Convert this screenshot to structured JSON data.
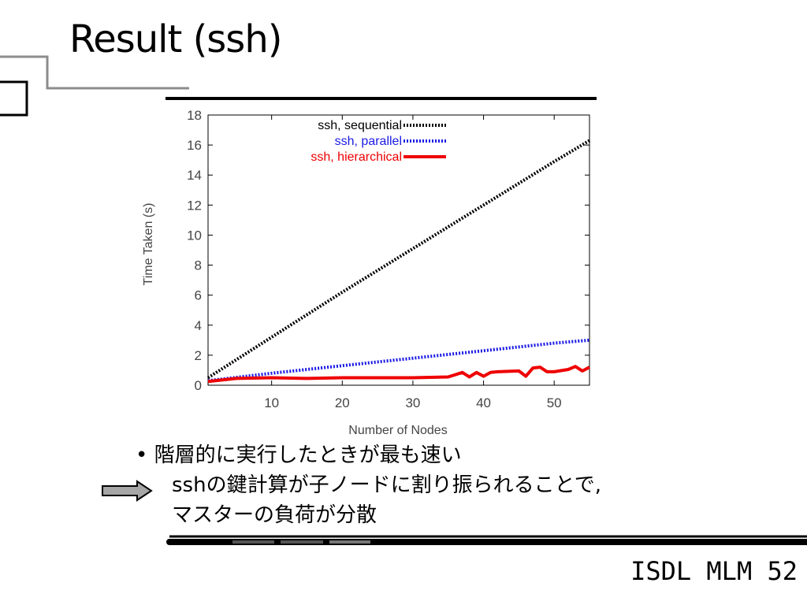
{
  "slide": {
    "title": "Result (ssh)",
    "bullet": "• 階層的に実行したときが最も速い",
    "arrow_text_line1": "sshの鍵計算が子ノードに割り振られることで,",
    "arrow_text_line2": "マスターの負荷が分散",
    "footer": "ISDL MLM 52"
  },
  "colors": {
    "sequential": "#000000",
    "parallel": "#1a1ae6",
    "hierarchical": "#ee0000",
    "arrow_fill": "#a6a6a6"
  },
  "chart_data": {
    "type": "line",
    "xlabel": "Number of Nodes",
    "ylabel": "Time Taken (s)",
    "xlim": [
      1,
      55
    ],
    "ylim": [
      0,
      18
    ],
    "xticks": [
      10,
      20,
      30,
      40,
      50
    ],
    "yticks": [
      0,
      2,
      4,
      6,
      8,
      10,
      12,
      14,
      16,
      18
    ],
    "grid": false,
    "legend": "top-left",
    "series": [
      {
        "name": "ssh, sequential",
        "style": "dotted",
        "x": [
          1,
          10,
          20,
          30,
          40,
          50,
          55
        ],
        "y": [
          0.5,
          3.2,
          6.2,
          9.1,
          12.0,
          14.9,
          16.3
        ]
      },
      {
        "name": "ssh, parallel",
        "style": "dotted",
        "x": [
          1,
          10,
          20,
          30,
          40,
          50,
          55
        ],
        "y": [
          0.3,
          0.8,
          1.3,
          1.8,
          2.3,
          2.8,
          3.0
        ]
      },
      {
        "name": "ssh, hierarchical",
        "style": "solid",
        "x": [
          1,
          5,
          10,
          15,
          20,
          25,
          30,
          35,
          37,
          38,
          39,
          40,
          41,
          42,
          45,
          46,
          47,
          48,
          49,
          50,
          52,
          53,
          54,
          55
        ],
        "y": [
          0.25,
          0.45,
          0.5,
          0.45,
          0.5,
          0.5,
          0.5,
          0.55,
          0.85,
          0.55,
          0.85,
          0.6,
          0.85,
          0.9,
          0.95,
          0.6,
          1.15,
          1.2,
          0.9,
          0.9,
          1.05,
          1.25,
          0.95,
          1.2
        ]
      }
    ]
  }
}
